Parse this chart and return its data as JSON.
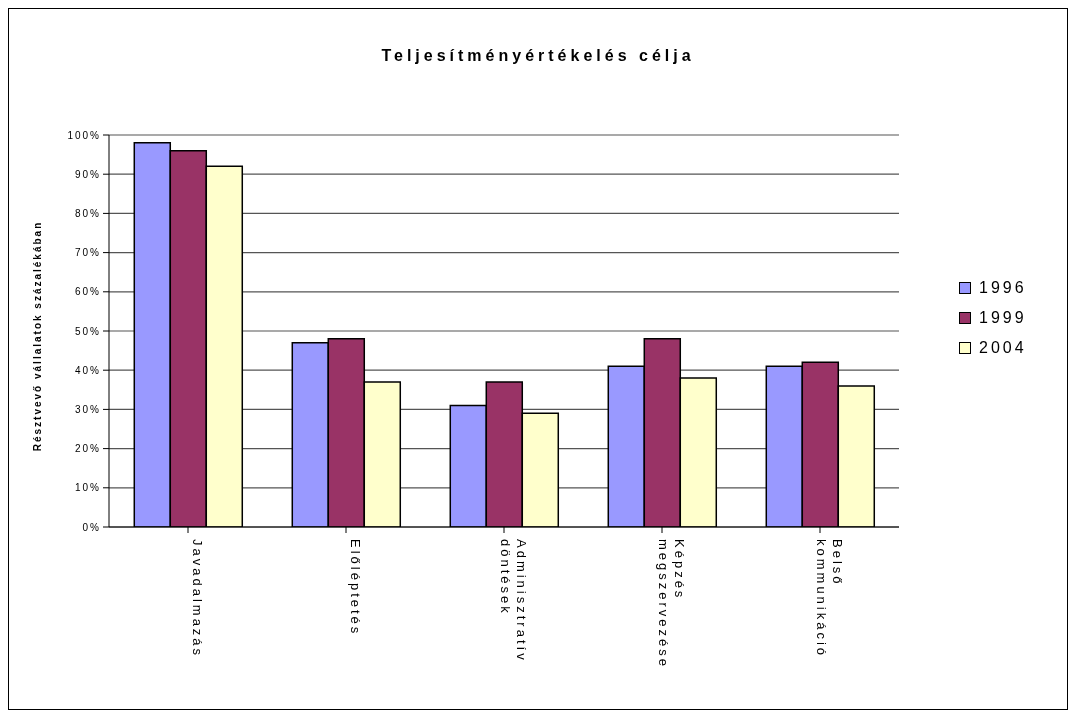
{
  "chart_data": {
    "type": "bar",
    "title": "Teljesítményértékelés célja",
    "ylabel": "Résztvevő vállalatok százalékában",
    "categories": [
      "Javadalmazás",
      "Előléptetés",
      "Adminisztratív döntések",
      "Képzés megszervezése",
      "Belső kommunikáció"
    ],
    "series": [
      {
        "name": "1996",
        "color": "#9999ff",
        "values": [
          98,
          47,
          31,
          41,
          41
        ]
      },
      {
        "name": "1999",
        "color": "#993366",
        "values": [
          96,
          48,
          37,
          48,
          42
        ]
      },
      {
        "name": "2004",
        "color": "#ffffcc",
        "values": [
          92,
          37,
          29,
          38,
          36
        ]
      }
    ],
    "ylim": [
      0,
      100
    ],
    "yticks": [
      {
        "value": 0,
        "label": "0%"
      },
      {
        "value": 10,
        "label": "10%"
      },
      {
        "value": 20,
        "label": "20%"
      },
      {
        "value": 30,
        "label": "30%"
      },
      {
        "value": 40,
        "label": "40%"
      },
      {
        "value": 50,
        "label": "50%"
      },
      {
        "value": 60,
        "label": "60%"
      },
      {
        "value": 70,
        "label": "70%"
      },
      {
        "value": 80,
        "label": "80%"
      },
      {
        "value": 90,
        "label": "90%"
      },
      {
        "value": 100,
        "label": "100%"
      }
    ],
    "grid": "y",
    "legend": "right"
  }
}
